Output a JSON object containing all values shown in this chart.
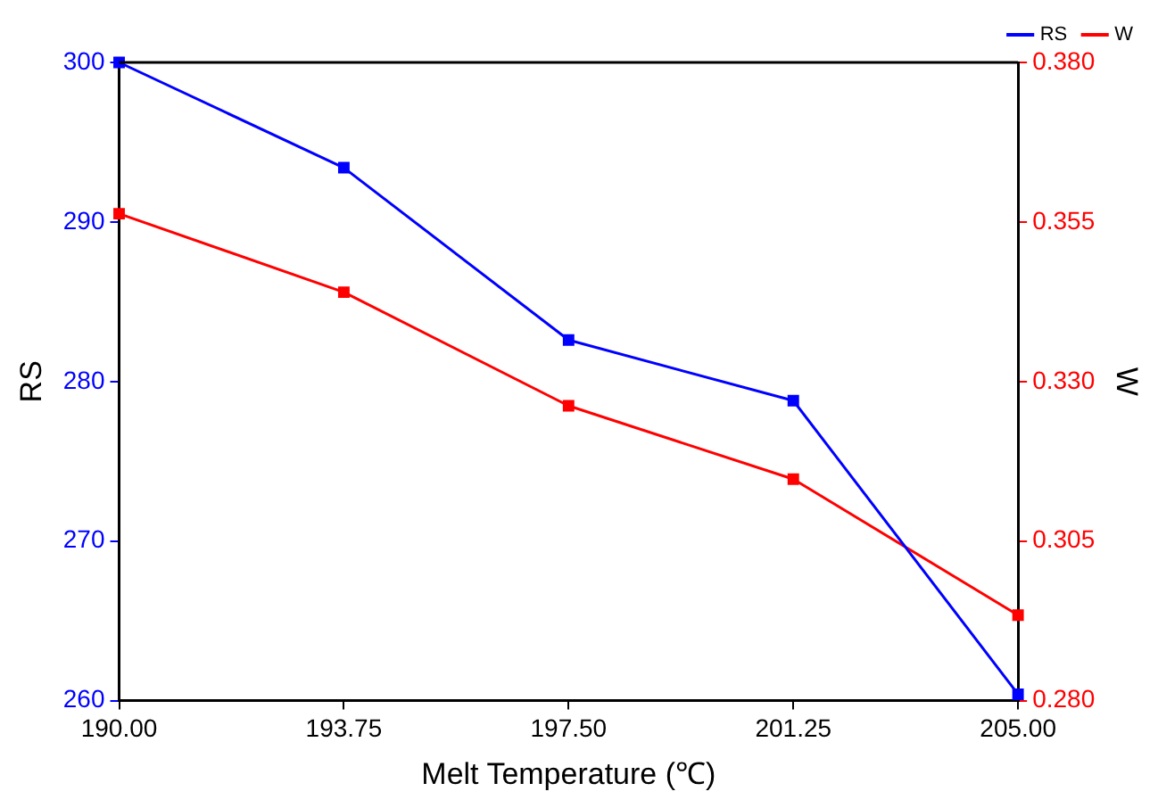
{
  "chart_data": {
    "type": "line",
    "xlabel": "Melt Temperature (℃)",
    "ylabel": "RS",
    "y2label": "W",
    "x": [
      190,
      193.75,
      197.5,
      201.25,
      205
    ],
    "series": [
      {
        "name": "RS",
        "color": "#0000ff",
        "values": [
          300,
          293.4,
          282.6,
          278.8,
          260.4
        ]
      },
      {
        "name": "W",
        "color": "#ff0000",
        "values": [
          0.3563,
          0.344,
          0.3262,
          0.3147,
          0.2934
        ],
        "axis": "y2"
      }
    ],
    "xlim": [
      190,
      205
    ],
    "xticks": [
      {
        "value": 190,
        "label": "190.00"
      },
      {
        "value": 193.75,
        "label": "193.75"
      },
      {
        "value": 197.5,
        "label": "197.50"
      },
      {
        "value": 201.25,
        "label": "201.25"
      },
      {
        "value": 205,
        "label": "205.00"
      }
    ],
    "ylim": [
      260,
      300
    ],
    "yticks": [
      260,
      270,
      280,
      290,
      300
    ],
    "y2lim": [
      0.28,
      0.38
    ],
    "y2ticks": [
      {
        "value": 0.28,
        "label": "0.280"
      },
      {
        "value": 0.305,
        "label": "0.305"
      },
      {
        "value": 0.33,
        "label": "0.330"
      },
      {
        "value": 0.355,
        "label": "0.355"
      },
      {
        "value": 0.38,
        "label": "0.380"
      }
    ],
    "grid": false,
    "legend": "top right",
    "marker": "square",
    "line_style": "solid"
  }
}
